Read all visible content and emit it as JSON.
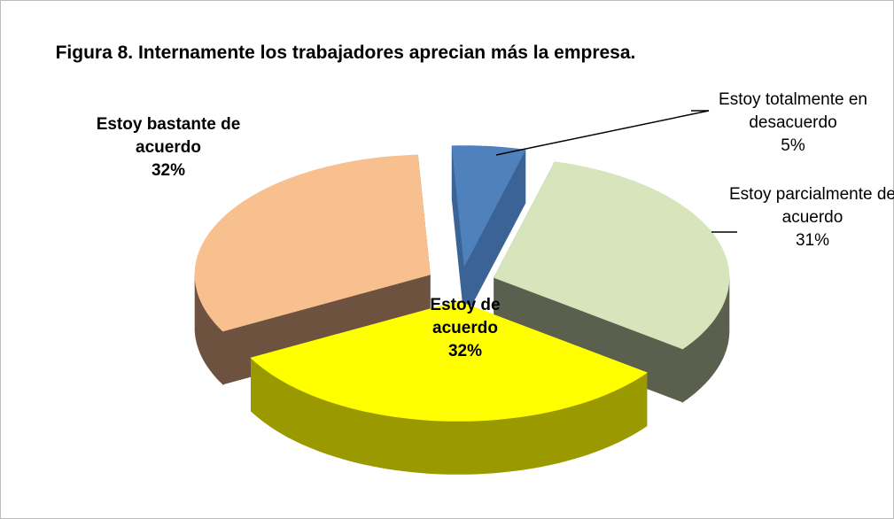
{
  "chart_data": {
    "type": "pie3d",
    "title": "Figura 8. Internamente los trabajadores aprecian más la empresa.",
    "categories": [
      "Estoy totalmente en desacuerdo",
      "Estoy parcialmente de acuerdo",
      "Estoy de acuerdo",
      "Estoy bastante de acuerdo"
    ],
    "values": [
      5,
      31,
      32,
      32
    ],
    "value_labels": [
      "5%",
      "31%",
      "32%",
      "32%"
    ],
    "colors": [
      "#4f81bd",
      "#d7e4bc",
      "#ffff00",
      "#f8bf8f"
    ],
    "side_colors": [
      "#3b6396",
      "#5b5f4d",
      "#9a9a00",
      "#6e5240"
    ]
  }
}
